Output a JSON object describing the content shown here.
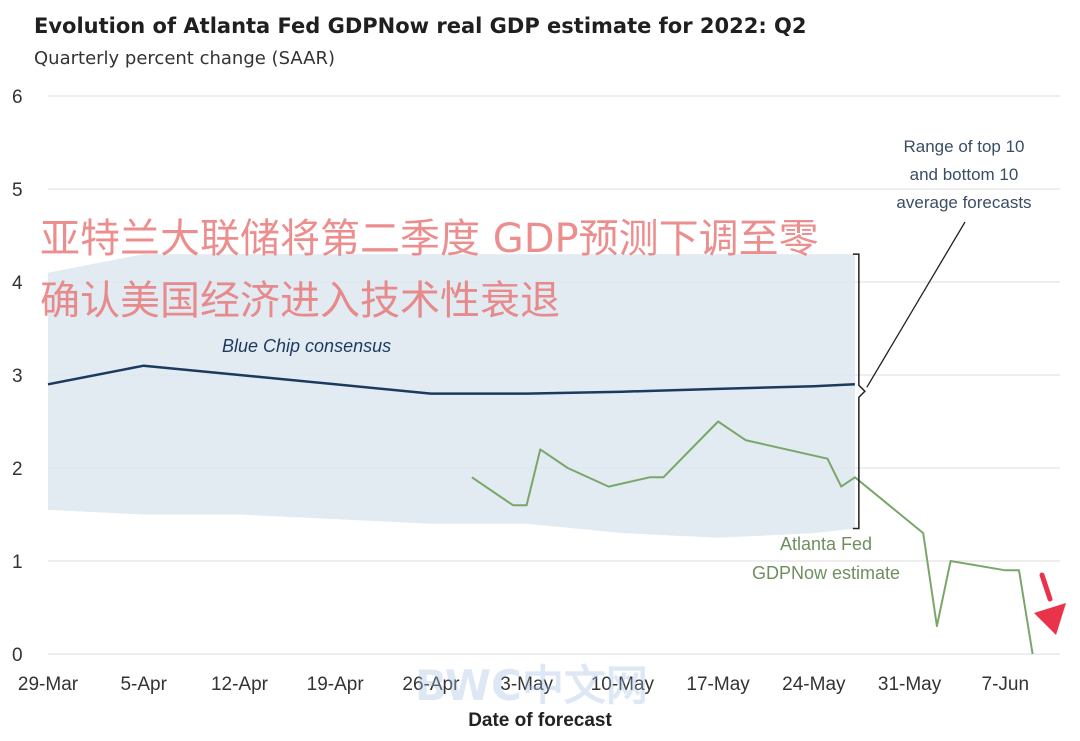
{
  "chart_data": {
    "type": "line",
    "title": "Evolution of Atlanta Fed GDPNow real GDP estimate for 2022: Q2",
    "subtitle": "Quarterly percent change (SAAR)",
    "xlabel": "Date of forecast",
    "ylabel": "",
    "x_axis": {
      "type": "date",
      "range": [
        "2022-03-29",
        "2022-06-11"
      ],
      "tick_dates": [
        "2022-03-29",
        "2022-04-05",
        "2022-04-12",
        "2022-04-19",
        "2022-04-26",
        "2022-05-03",
        "2022-05-10",
        "2022-05-17",
        "2022-05-24",
        "2022-05-31",
        "2022-06-07"
      ],
      "tick_labels": [
        "29-Mar",
        "5-Apr",
        "12-Apr",
        "19-Apr",
        "26-Apr",
        "3-May",
        "10-May",
        "17-May",
        "24-May",
        "31-May",
        "7-Jun"
      ]
    },
    "ylim": [
      0,
      6
    ],
    "yticks": [
      0,
      1,
      2,
      3,
      4,
      5,
      6
    ],
    "grid": "horizontal",
    "band": {
      "name": "Range of top 10 and bottom 10 average forecasts",
      "x": [
        "2022-03-29",
        "2022-04-05",
        "2022-04-12",
        "2022-04-19",
        "2022-04-26",
        "2022-05-03",
        "2022-05-10",
        "2022-05-17",
        "2022-05-24",
        "2022-05-27"
      ],
      "upper": [
        4.1,
        4.3,
        4.3,
        4.3,
        4.3,
        4.3,
        4.3,
        4.3,
        4.3,
        4.3
      ],
      "lower": [
        1.55,
        1.5,
        1.5,
        1.45,
        1.4,
        1.4,
        1.3,
        1.25,
        1.3,
        1.35
      ],
      "color": "#dde8f0"
    },
    "series": [
      {
        "name": "Blue Chip consensus",
        "color": "#1c3a5e",
        "x": [
          "2022-03-29",
          "2022-04-05",
          "2022-04-12",
          "2022-04-19",
          "2022-04-26",
          "2022-05-03",
          "2022-05-10",
          "2022-05-17",
          "2022-05-24",
          "2022-05-27"
        ],
        "y": [
          2.9,
          3.1,
          3.0,
          2.9,
          2.8,
          2.8,
          2.82,
          2.85,
          2.88,
          2.9
        ]
      },
      {
        "name": "Atlanta Fed GDPNow estimate",
        "color": "#7aa66a",
        "x": [
          "2022-04-29",
          "2022-05-02",
          "2022-05-03",
          "2022-05-04",
          "2022-05-06",
          "2022-05-09",
          "2022-05-12",
          "2022-05-13",
          "2022-05-17",
          "2022-05-19",
          "2022-05-25",
          "2022-05-26",
          "2022-05-27",
          "2022-06-01",
          "2022-06-02",
          "2022-06-03",
          "2022-06-07",
          "2022-06-08",
          "2022-06-09"
        ],
        "y": [
          1.9,
          1.6,
          1.6,
          2.2,
          2.0,
          1.8,
          1.9,
          1.9,
          2.5,
          2.3,
          2.1,
          1.8,
          1.9,
          1.3,
          0.3,
          1.0,
          0.9,
          0.9,
          0.0
        ]
      }
    ],
    "annotations": {
      "band_label": [
        "Range of top 10",
        "and bottom 10",
        "average forecasts"
      ],
      "gdpnow_label": [
        "Atlanta Fed",
        "GDPNow estimate"
      ],
      "bluechip_label": "Blue Chip consensus"
    }
  },
  "overlay_text": [
    "亚特兰大联储将第二季度 GDP预测下调至零",
    "确认美国经济进入技术性衰退"
  ],
  "watermark": "BWC中文网",
  "colors": {
    "grid": "#dcdcdc",
    "axis_text": "#333333",
    "bracket": "#222222",
    "arrow": "#e8334a"
  }
}
